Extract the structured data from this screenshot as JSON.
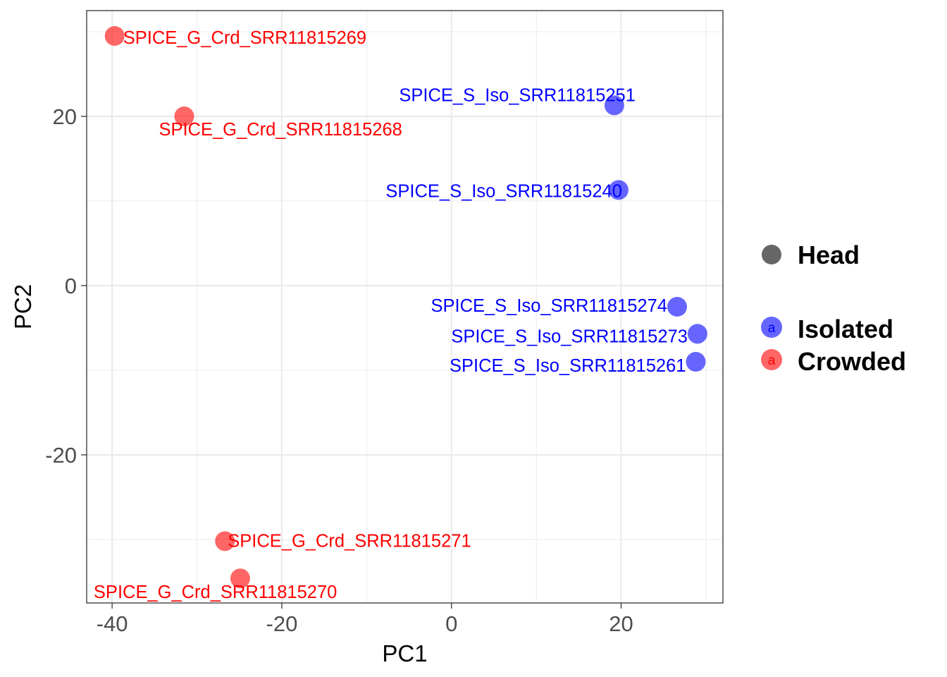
{
  "chart_data": {
    "type": "scatter",
    "title": "",
    "xlabel": "PC1",
    "ylabel": "PC2",
    "xlim": [
      -43,
      32
    ],
    "ylim": [
      -37.5,
      32.5
    ],
    "xticks": [
      -40,
      -20,
      0,
      20
    ],
    "yticks": [
      -20,
      0,
      20
    ],
    "x_tick_labels": [
      "-40",
      "-20",
      "0",
      "20"
    ],
    "y_tick_labels": [
      "-20",
      "0",
      "20"
    ],
    "grid": true,
    "legend_position": "right",
    "legend": {
      "shape_entries": [
        {
          "label": "Head",
          "color": "#666666"
        }
      ],
      "color_entries": [
        {
          "label": "Isolated",
          "color": "#0000FF",
          "key_letter": "a"
        },
        {
          "label": "Crowded",
          "color": "#FF0000",
          "key_letter": "a"
        }
      ]
    },
    "points": [
      {
        "label": "SPICE_G_Crd_SRR11815269",
        "x": -39.7,
        "y": 29.5,
        "group": "Crowded"
      },
      {
        "label": "SPICE_G_Crd_SRR11815268",
        "x": -31.5,
        "y": 20.0,
        "group": "Crowded"
      },
      {
        "label": "SPICE_S_Iso_SRR11815251",
        "x": 19.2,
        "y": 21.3,
        "group": "Isolated"
      },
      {
        "label": "SPICE_S_Iso_SRR11815240",
        "x": 19.7,
        "y": 11.3,
        "group": "Isolated"
      },
      {
        "label": "SPICE_S_Iso_SRR11815274",
        "x": 26.6,
        "y": -2.5,
        "group": "Isolated"
      },
      {
        "label": "SPICE_S_Iso_SRR11815273",
        "x": 29.0,
        "y": -5.7,
        "group": "Isolated"
      },
      {
        "label": "SPICE_S_Iso_SRR11815261",
        "x": 28.8,
        "y": -9.0,
        "group": "Isolated"
      },
      {
        "label": "SPICE_G_Crd_SRR11815271",
        "x": -26.7,
        "y": -30.2,
        "group": "Crowded"
      },
      {
        "label": "SPICE_G_Crd_SRR11815270",
        "x": -24.9,
        "y": -34.6,
        "group": "Crowded"
      }
    ]
  }
}
